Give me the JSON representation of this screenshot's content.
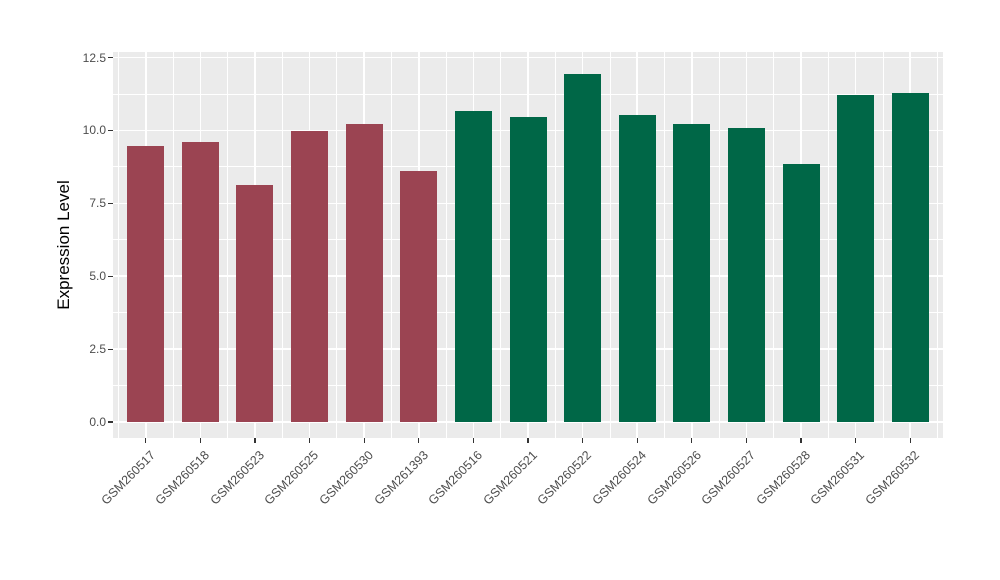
{
  "chart": {
    "title": "",
    "y_axis_title": "Expression Level"
  },
  "chart_data": {
    "type": "bar",
    "title": "",
    "xlabel": "",
    "ylabel": "Expression Level",
    "categories": [
      "GSM260517",
      "GSM260518",
      "GSM260523",
      "GSM260525",
      "GSM260530",
      "GSM261393",
      "GSM260516",
      "GSM260521",
      "GSM260522",
      "GSM260524",
      "GSM260526",
      "GSM260527",
      "GSM260528",
      "GSM260531",
      "GSM260532"
    ],
    "values": [
      9.47,
      9.61,
      8.13,
      9.98,
      10.22,
      8.61,
      10.67,
      10.46,
      11.94,
      10.52,
      10.22,
      10.08,
      8.85,
      11.21,
      11.27
    ],
    "groups": [
      "red",
      "red",
      "red",
      "red",
      "red",
      "red",
      "green",
      "green",
      "green",
      "green",
      "green",
      "green",
      "green",
      "green",
      "green"
    ],
    "group_colors": {
      "red": "#9B4452",
      "green": "#006747"
    },
    "yticks": [
      0,
      2.5,
      5,
      7.5,
      10,
      12.5
    ],
    "ytick_labels": [
      "0.0",
      "2.5",
      "5.0",
      "7.5",
      "10.0",
      "12.5"
    ],
    "ylim": [
      0,
      12.5
    ],
    "minor_yticks": [
      1.25,
      3.75,
      6.25,
      8.75,
      11.25
    ],
    "grid": true,
    "legend_position": "none",
    "panel_background": "#EBEBEB",
    "grid_color": "#FFFFFF",
    "axis_text_color": "#4D4D4D",
    "tick_mark_color": "#333333",
    "x_label_rotation_deg": 45
  }
}
